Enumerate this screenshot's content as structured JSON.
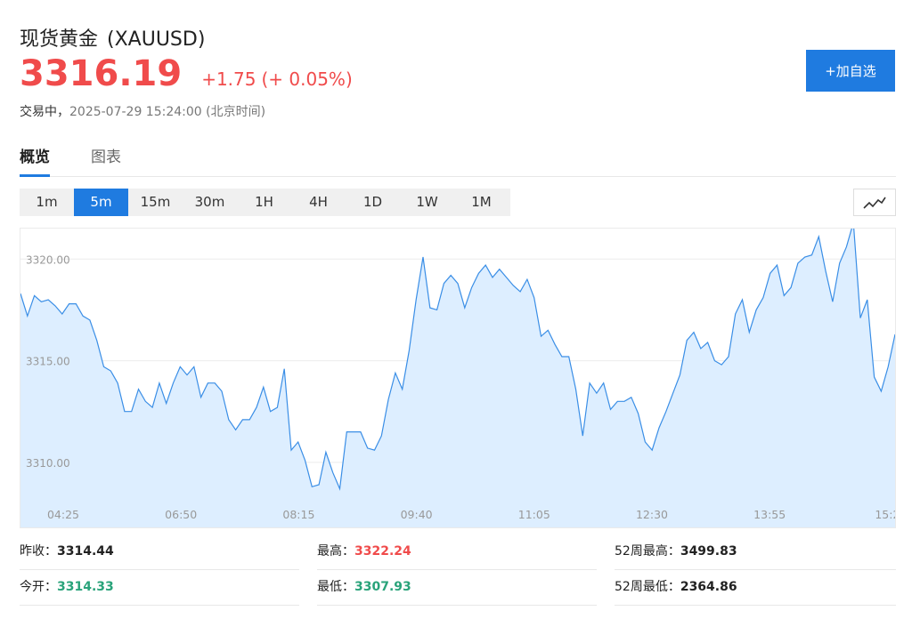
{
  "header": {
    "name": "现货黄金",
    "symbol": "(XAUUSD)",
    "price": "3316.19",
    "change": "+1.75",
    "change_pct": "(+ 0.05%)",
    "status": "交易中，",
    "timestamp": "2025-07-29 15:24:00 (北京时间)",
    "watch_label": "+加自选"
  },
  "tabs": [
    {
      "label": "概览",
      "active": true
    },
    {
      "label": "图表",
      "active": false
    }
  ],
  "periods": [
    {
      "label": "1m",
      "active": false
    },
    {
      "label": "5m",
      "active": true
    },
    {
      "label": "15m",
      "active": false
    },
    {
      "label": "30m",
      "active": false
    },
    {
      "label": "1H",
      "active": false
    },
    {
      "label": "4H",
      "active": false
    },
    {
      "label": "1D",
      "active": false
    },
    {
      "label": "1W",
      "active": false
    },
    {
      "label": "1M",
      "active": false
    }
  ],
  "chart_type_icon": "line-chart-icon",
  "chart_data": {
    "type": "area",
    "ylim": [
      3307.5,
      3321.5
    ],
    "y_ticks": [
      "3310.00",
      "3315.00",
      "3320.00"
    ],
    "x_tick_labels": [
      "04:25",
      "06:50",
      "08:15",
      "09:40",
      "11:05",
      "12:30",
      "13:55",
      "15:2"
    ],
    "values": [
      3318.3,
      3317.2,
      3318.2,
      3317.9,
      3318.0,
      3317.7,
      3317.3,
      3317.8,
      3317.8,
      3317.2,
      3317.0,
      3316.0,
      3314.7,
      3314.5,
      3313.9,
      3312.5,
      3312.5,
      3313.6,
      3313.0,
      3312.7,
      3313.9,
      3312.9,
      3313.9,
      3314.7,
      3314.3,
      3314.7,
      3313.2,
      3313.9,
      3313.9,
      3313.5,
      3312.1,
      3311.6,
      3312.1,
      3312.1,
      3312.7,
      3313.7,
      3312.5,
      3312.7,
      3314.6,
      3310.6,
      3311.0,
      3310.1,
      3308.8,
      3308.9,
      3310.5,
      3309.5,
      3308.7,
      3311.5,
      3311.5,
      3311.5,
      3310.7,
      3310.6,
      3311.3,
      3313.1,
      3314.4,
      3313.6,
      3315.5,
      3318.0,
      3320.1,
      3317.6,
      3317.5,
      3318.8,
      3319.2,
      3318.8,
      3317.6,
      3318.6,
      3319.3,
      3319.7,
      3319.1,
      3319.5,
      3319.1,
      3318.7,
      3318.4,
      3319.0,
      3318.1,
      3316.2,
      3316.5,
      3315.8,
      3315.2,
      3315.2,
      3313.6,
      3311.3,
      3313.9,
      3313.4,
      3313.9,
      3312.6,
      3313.0,
      3313.0,
      3313.2,
      3312.4,
      3311.0,
      3310.6,
      3311.7,
      3312.5,
      3313.4,
      3314.3,
      3316.0,
      3316.4,
      3315.6,
      3315.9,
      3315.0,
      3314.8,
      3315.2,
      3317.3,
      3318.0,
      3316.4,
      3317.5,
      3318.1,
      3319.3,
      3319.7,
      3318.2,
      3318.6,
      3319.8,
      3320.1,
      3320.2,
      3321.1,
      3319.4,
      3317.9,
      3319.8,
      3320.6,
      3321.8,
      3317.1,
      3318.0,
      3314.2,
      3313.5,
      3314.7,
      3316.3
    ],
    "line_color": "#3a8ee6",
    "fill_color": "#ddeeff"
  },
  "stats": [
    {
      "label": "昨收：",
      "value": "3314.44",
      "color": "plain"
    },
    {
      "label": "最高：",
      "value": "3322.24",
      "color": "red"
    },
    {
      "label": "52周最高：",
      "value": "3499.83",
      "color": "plain"
    },
    {
      "label": "今开：",
      "value": "3314.33",
      "color": "green"
    },
    {
      "label": "最低：",
      "value": "3307.93",
      "color": "green"
    },
    {
      "label": "52周最低：",
      "value": "2364.86",
      "color": "plain"
    }
  ]
}
